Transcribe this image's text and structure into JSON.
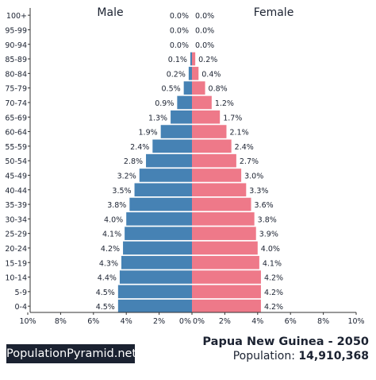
{
  "chart_data": {
    "type": "bar",
    "orientation": "horizontal-population-pyramid",
    "title": "Papua New Guinea - 2050",
    "side_labels": {
      "left": "Male",
      "right": "Female"
    },
    "categories": [
      "100+",
      "95-99",
      "90-94",
      "85-89",
      "80-84",
      "75-79",
      "70-74",
      "65-69",
      "60-64",
      "55-59",
      "50-54",
      "45-49",
      "40-44",
      "35-39",
      "30-34",
      "25-29",
      "20-24",
      "15-19",
      "10-14",
      "5-9",
      "0-4"
    ],
    "series": [
      {
        "name": "Male",
        "color": "#4682b4",
        "values": [
          0.0,
          0.0,
          0.0,
          0.1,
          0.2,
          0.5,
          0.9,
          1.3,
          1.9,
          2.4,
          2.8,
          3.2,
          3.5,
          3.8,
          4.0,
          4.1,
          4.2,
          4.3,
          4.4,
          4.5,
          4.5
        ],
        "labels": [
          "0.0%",
          "0.0%",
          "0.0%",
          "0.1%",
          "0.2%",
          "0.5%",
          "0.9%",
          "1.3%",
          "1.9%",
          "2.4%",
          "2.8%",
          "3.2%",
          "3.5%",
          "3.8%",
          "4.0%",
          "4.1%",
          "4.2%",
          "4.3%",
          "4.4%",
          "4.5%",
          "4.5%"
        ]
      },
      {
        "name": "Female",
        "color": "#ee7989",
        "values": [
          0.0,
          0.0,
          0.0,
          0.2,
          0.4,
          0.8,
          1.2,
          1.7,
          2.1,
          2.4,
          2.7,
          3.0,
          3.3,
          3.6,
          3.8,
          3.9,
          4.0,
          4.1,
          4.2,
          4.2,
          4.2
        ],
        "labels": [
          "0.0%",
          "0.0%",
          "0.0%",
          "0.2%",
          "0.4%",
          "0.8%",
          "1.2%",
          "1.7%",
          "2.1%",
          "2.4%",
          "2.7%",
          "3.0%",
          "3.3%",
          "3.6%",
          "3.8%",
          "3.9%",
          "4.0%",
          "4.1%",
          "4.2%",
          "4.2%",
          "4.2%"
        ]
      }
    ],
    "xlim": [
      0,
      10
    ],
    "x_ticks_left": [
      "10%",
      "8%",
      "6%",
      "4%",
      "2%",
      "0%"
    ],
    "x_ticks_right": [
      "0%",
      "2%",
      "4%",
      "6%",
      "8%",
      "10%"
    ],
    "grid": false
  },
  "brand": "PopulationPyramid.net",
  "caption": {
    "title": "Papua New Guinea - 2050",
    "population_label": "Population:",
    "population_value": "14,910,368"
  }
}
